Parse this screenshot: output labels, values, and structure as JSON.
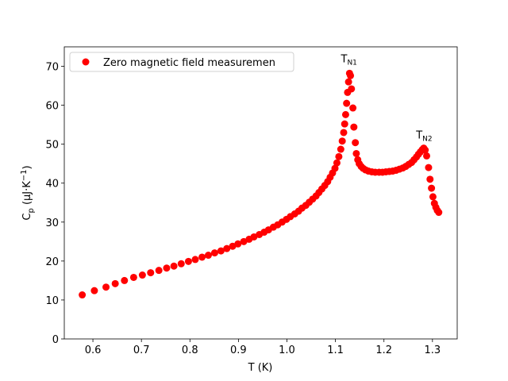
{
  "chart_data": {
    "type": "scatter",
    "xlabel": "T (K)",
    "ylabel": {
      "base": "C",
      "sub": "p",
      "rest": " (μJ·K",
      "sup": "−1",
      "end": ")"
    },
    "xlim": [
      0.541,
      1.351
    ],
    "ylim": [
      0,
      75
    ],
    "xticks": [
      0.6,
      0.7,
      0.8,
      0.9,
      {
        "value": 1,
        "label": "1.0"
      },
      1.1,
      1.2,
      1.3
    ],
    "yticks": [
      0,
      10,
      20,
      30,
      40,
      50,
      60,
      70
    ],
    "legend": "upper left",
    "annotations": [
      {
        "text": "T",
        "sub": "N1",
        "x": 1.128,
        "y": 71
      },
      {
        "text": "T",
        "sub": "N2",
        "x": 1.283,
        "y": 51.5
      }
    ],
    "series": [
      {
        "name": "Zero magnetic field measuremen",
        "color": "#ff0000",
        "x": [
          0.578,
          0.603,
          0.627,
          0.646,
          0.665,
          0.684,
          0.702,
          0.719,
          0.736,
          0.752,
          0.767,
          0.782,
          0.797,
          0.811,
          0.825,
          0.838,
          0.851,
          0.864,
          0.876,
          0.888,
          0.899,
          0.911,
          0.922,
          0.932,
          0.943,
          0.953,
          0.962,
          0.972,
          0.981,
          0.99,
          0.999,
          1.007,
          1.016,
          1.024,
          1.031,
          1.039,
          1.046,
          1.053,
          1.06,
          1.066,
          1.072,
          1.078,
          1.084,
          1.089,
          1.094,
          1.099,
          1.103,
          1.107,
          1.111,
          1.114,
          1.117,
          1.119,
          1.121,
          1.123,
          1.125,
          1.127,
          1.129,
          1.131,
          1.133,
          1.136,
          1.138,
          1.141,
          1.143,
          1.146,
          1.149,
          1.153,
          1.157,
          1.162,
          1.168,
          1.175,
          1.182,
          1.19,
          1.197,
          1.204,
          1.211,
          1.218,
          1.225,
          1.232,
          1.239,
          1.245,
          1.251,
          1.257,
          1.262,
          1.267,
          1.271,
          1.275,
          1.279,
          1.282,
          1.285,
          1.288,
          1.292,
          1.295,
          1.298,
          1.301,
          1.304,
          1.307,
          1.31,
          1.313
        ],
        "values": [
          11.3,
          12.4,
          13.3,
          14.2,
          15.0,
          15.8,
          16.4,
          17.0,
          17.6,
          18.2,
          18.7,
          19.3,
          19.9,
          20.4,
          21.0,
          21.5,
          22.1,
          22.6,
          23.2,
          23.8,
          24.4,
          25.0,
          25.6,
          26.2,
          26.8,
          27.4,
          28.0,
          28.7,
          29.3,
          30.0,
          30.7,
          31.4,
          32.1,
          32.8,
          33.6,
          34.3,
          35.1,
          35.9,
          36.7,
          37.6,
          38.5,
          39.4,
          40.4,
          41.5,
          42.6,
          43.8,
          45.2,
          46.8,
          48.7,
          50.8,
          53.0,
          55.2,
          57.6,
          60.5,
          63.3,
          66.0,
          68.2,
          67.6,
          64.2,
          59.3,
          54.4,
          50.4,
          47.6,
          46.0,
          45.0,
          44.3,
          43.8,
          43.4,
          43.1,
          42.9,
          42.8,
          42.8,
          42.8,
          42.9,
          43.0,
          43.1,
          43.3,
          43.6,
          43.9,
          44.3,
          44.8,
          45.3,
          46.0,
          46.7,
          47.4,
          48.0,
          48.6,
          49.0,
          48.5,
          47.0,
          44.0,
          41.0,
          38.7,
          36.5,
          34.8,
          33.8,
          33.0,
          32.5
        ]
      }
    ]
  }
}
